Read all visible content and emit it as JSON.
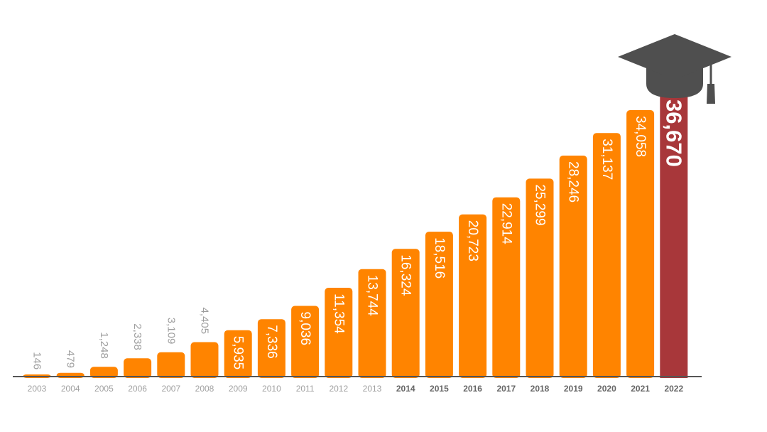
{
  "chart_data": {
    "type": "bar",
    "categories": [
      "2003",
      "2004",
      "2005",
      "2006",
      "2007",
      "2008",
      "2009",
      "2010",
      "2011",
      "2012",
      "2013",
      "2014",
      "2015",
      "2016",
      "2017",
      "2018",
      "2019",
      "2020",
      "2021",
      "2022"
    ],
    "values": [
      146,
      479,
      1248,
      2338,
      3109,
      4405,
      5935,
      7336,
      9036,
      11354,
      13744,
      16324,
      18516,
      20723,
      22914,
      25299,
      28246,
      31137,
      34058,
      36670
    ],
    "value_labels": [
      "146",
      "479",
      "1,248",
      "2,338",
      "3,109",
      "4,405",
      "5,935",
      "7,336",
      "9,036",
      "11,354",
      "13,744",
      "16,324",
      "18,516",
      "20,723",
      "22,914",
      "25,299",
      "28,246",
      "31,137",
      "34,058",
      "36,670"
    ],
    "title": "",
    "xlabel": "",
    "ylabel": "",
    "ylim": [
      0,
      36670
    ],
    "grid": false,
    "legend": "none",
    "highlight_category": "2022",
    "bold_categories": [
      "2014",
      "2015",
      "2016",
      "2017",
      "2018",
      "2019",
      "2020",
      "2021",
      "2022"
    ],
    "colors": {
      "bar": "#FF8400",
      "highlight": "#A8373A",
      "label_inside": "#ffffff",
      "label_outside": "#9e9e9e",
      "axis": "#555555",
      "year_normal": "#a0a0a0",
      "year_bold": "#666666",
      "cap": "#4f4f4f"
    },
    "decoration": {
      "icon": "graduation-cap-icon"
    }
  }
}
